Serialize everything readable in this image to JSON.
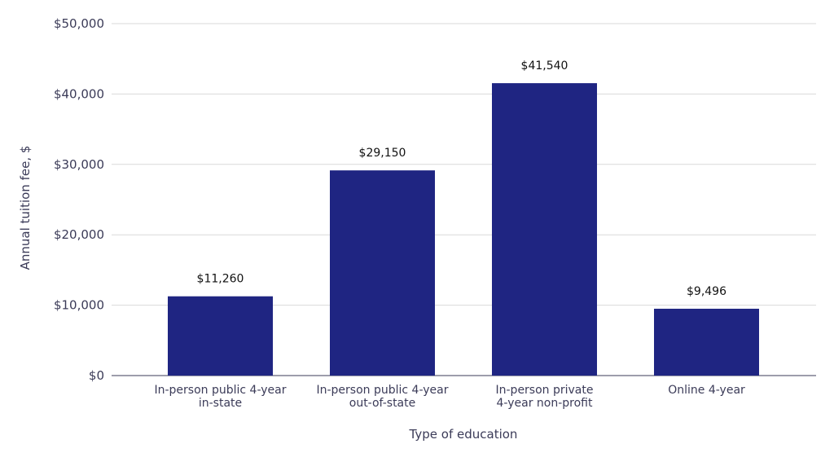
{
  "chart_data": {
    "type": "bar",
    "title": "",
    "xlabel": "Type of education",
    "ylabel": "Annual tuition fee, $",
    "ylim": [
      0,
      50000
    ],
    "yticks": [
      0,
      10000,
      20000,
      30000,
      40000,
      50000
    ],
    "ytick_labels": [
      "$0",
      "$10,000",
      "$20,000",
      "$30,000",
      "$40,000",
      "$50,000"
    ],
    "grid": true,
    "categories": [
      [
        "In-person public 4-year",
        "in-state"
      ],
      [
        "In-person public 4-year",
        "out-of-state"
      ],
      [
        "In-person private",
        "4-year non-profit"
      ],
      [
        "Online 4-year"
      ]
    ],
    "values": [
      11260,
      29150,
      41540,
      9496
    ],
    "data_labels": [
      "$11,260",
      "$29,150",
      "$41,540",
      "$9,496"
    ],
    "bar_color": "#1f2582",
    "grid_color": "#d9d9d9",
    "axis_color": "#3b3b58"
  }
}
